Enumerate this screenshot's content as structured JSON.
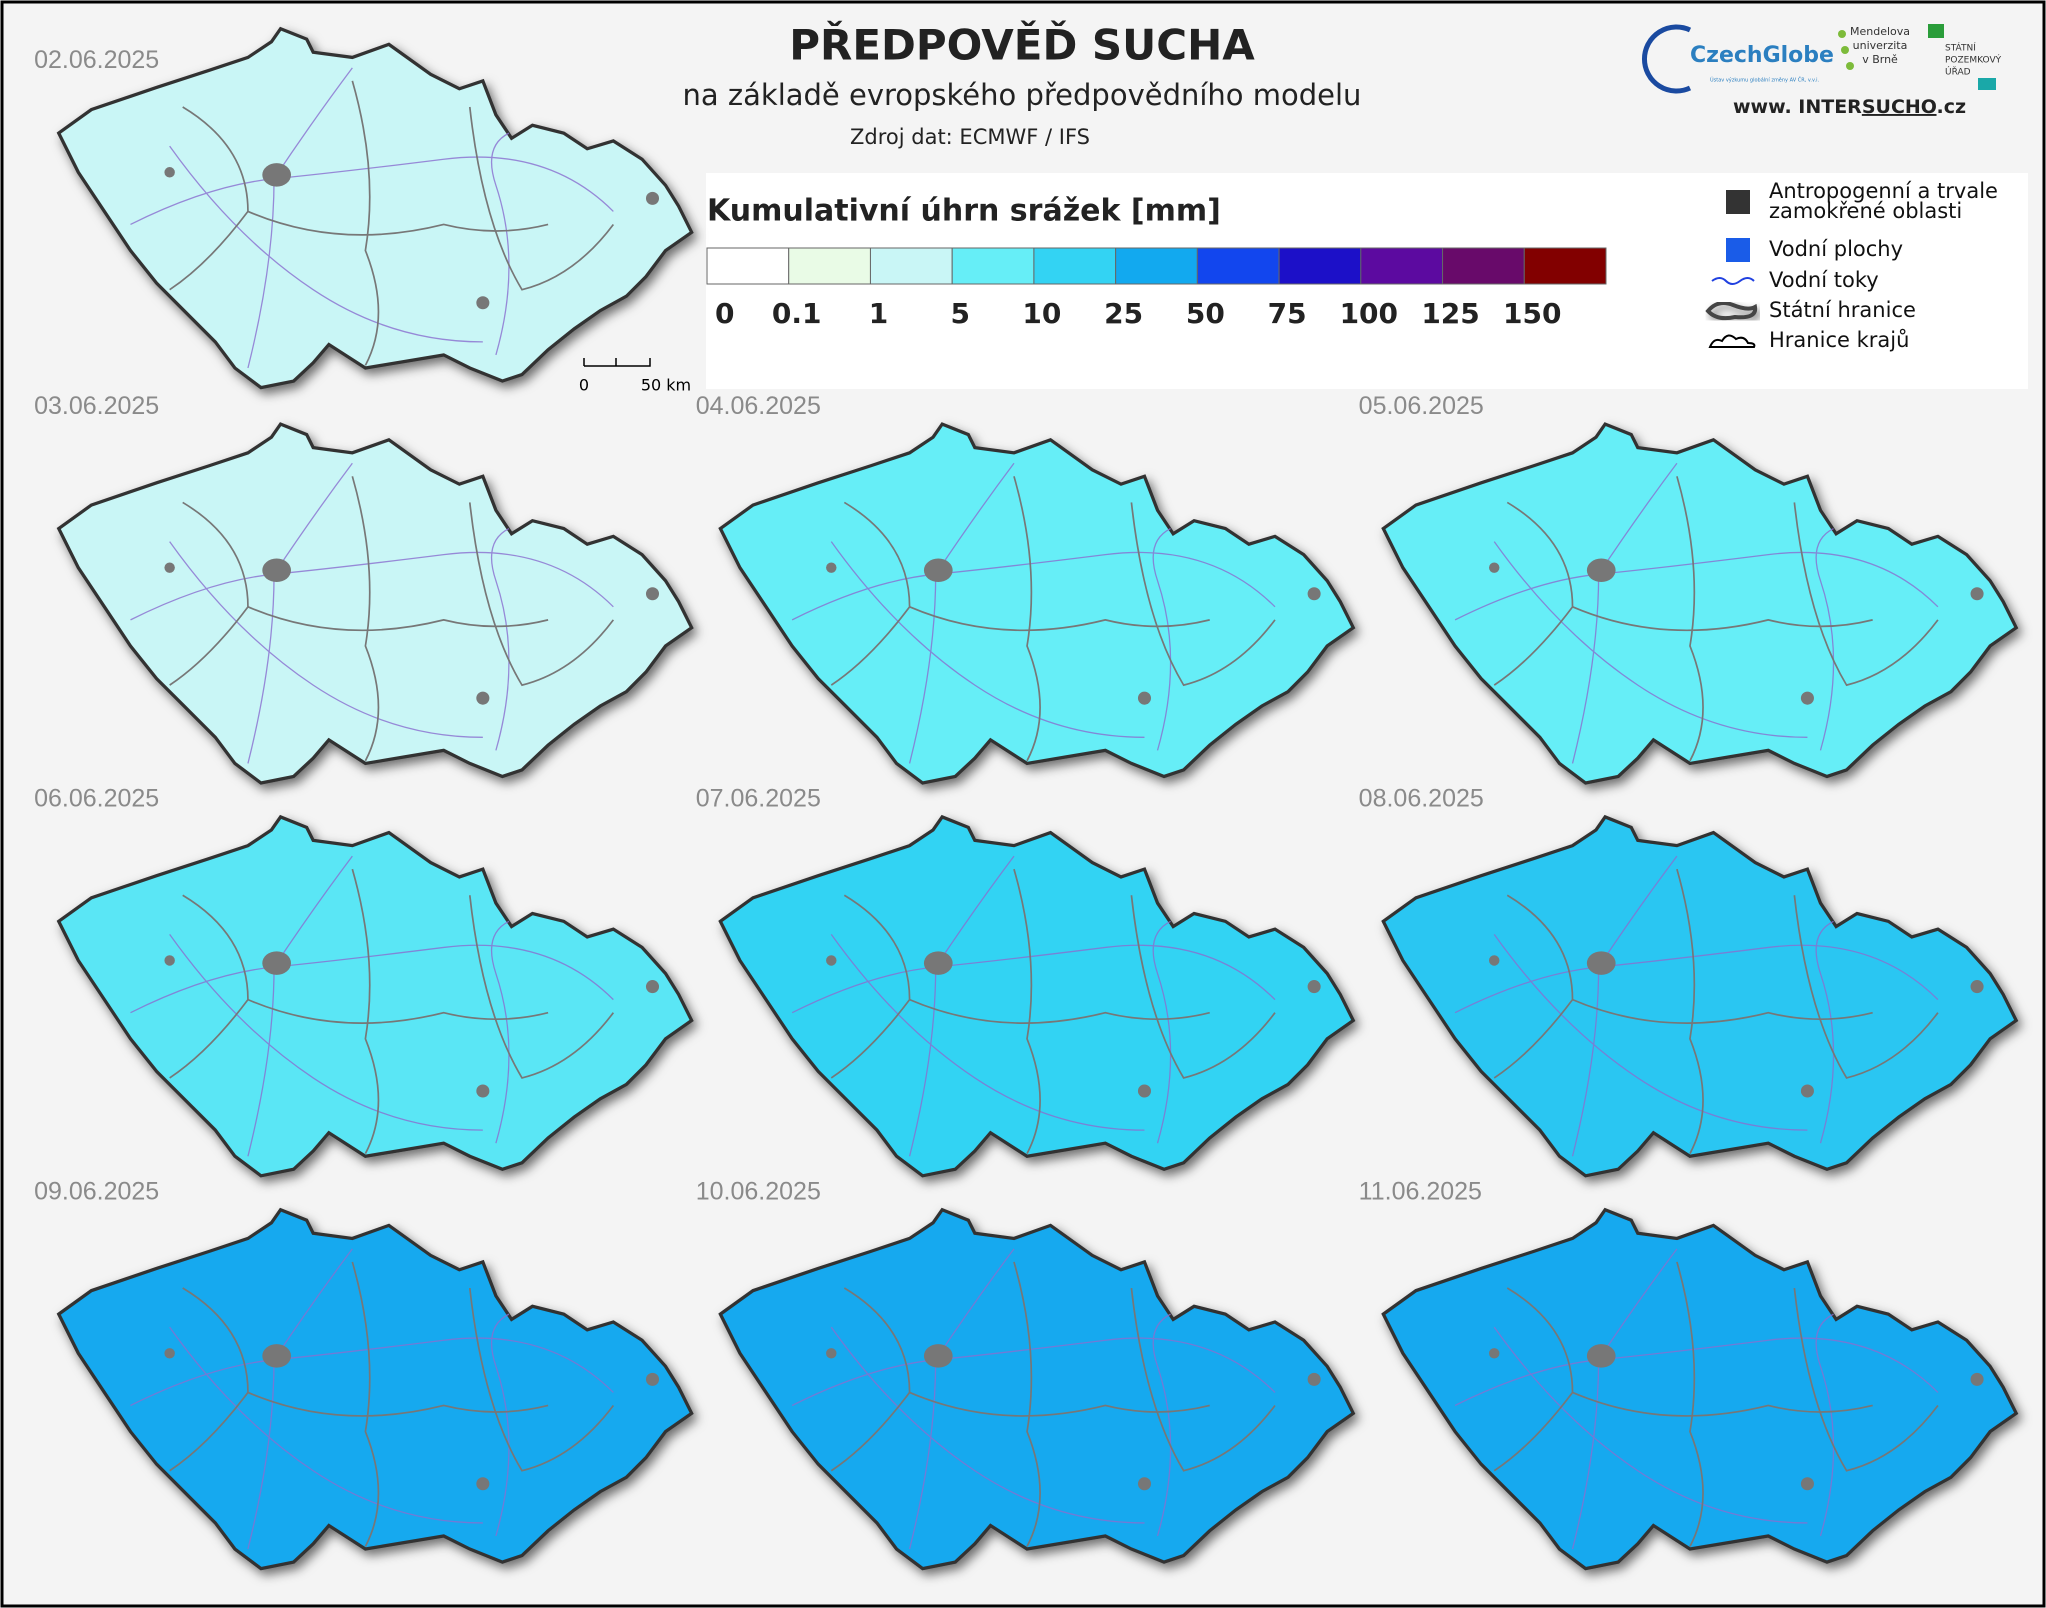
{
  "header": {
    "title": "PŘEDPOVĚĎ SUCHA",
    "subtitle": "na základě evropského předpovědního modelu",
    "source": "Zdroj dat: ECMWF / IFS"
  },
  "logos": {
    "czechglobe": "CzechGlobe",
    "czechglobe_sub": "Ústav výzkumu globální změny AV ČR, v.v.i.",
    "mendelu": [
      "Mendelova",
      "univerzita",
      "v Brně"
    ],
    "spu": [
      "STÁTNÍ",
      "POZEMKOVÝ",
      "ÚŘAD"
    ],
    "intersucho": [
      "www. INTER",
      "SUCHO",
      ".cz"
    ]
  },
  "legend": {
    "title": "Kumulativní úhrn srážek [mm]",
    "scale": {
      "colors": [
        "#ffffff",
        "#e9fbe6",
        "#c9f6f6",
        "#66eef7",
        "#33d3f3",
        "#12a9ef",
        "#1246ee",
        "#1c10c8",
        "#5c0aa0",
        "#680a6a",
        "#820000"
      ],
      "ticks": [
        0,
        0.1,
        1,
        5,
        10,
        25,
        50,
        75,
        100,
        125,
        150
      ]
    },
    "items": [
      {
        "label": [
          "Antropogenní a trvale",
          "zamokřené oblasti"
        ],
        "color": "#333333"
      },
      {
        "label": [
          "Vodní plochy"
        ],
        "color": "#1a5ce8"
      },
      {
        "label": [
          "Vodní toky"
        ],
        "color": "#2040e0"
      },
      {
        "label": [
          "Státní hranice"
        ],
        "color": "#444444"
      },
      {
        "label": [
          "Hranice krajů"
        ],
        "color": "#000000"
      }
    ]
  },
  "scalebar": {
    "zero": "0",
    "km": "50 km"
  },
  "maps": [
    {
      "date": "02.06.2025",
      "color": "#c9f6f6"
    },
    {
      "date": "03.06.2025",
      "color": "#c9f6f6"
    },
    {
      "date": "04.06.2025",
      "color": "#66eef7"
    },
    {
      "date": "05.06.2025",
      "color": "#66eef7"
    },
    {
      "date": "06.06.2025",
      "color": "#5ae6f5"
    },
    {
      "date": "07.06.2025",
      "color": "#33d3f3"
    },
    {
      "date": "08.06.2025",
      "color": "#2bc6f2"
    },
    {
      "date": "09.06.2025",
      "color": "#12a9ef"
    },
    {
      "date": "10.06.2025",
      "color": "#12a9ef"
    },
    {
      "date": "11.06.2025",
      "color": "#12a9ef"
    }
  ]
}
